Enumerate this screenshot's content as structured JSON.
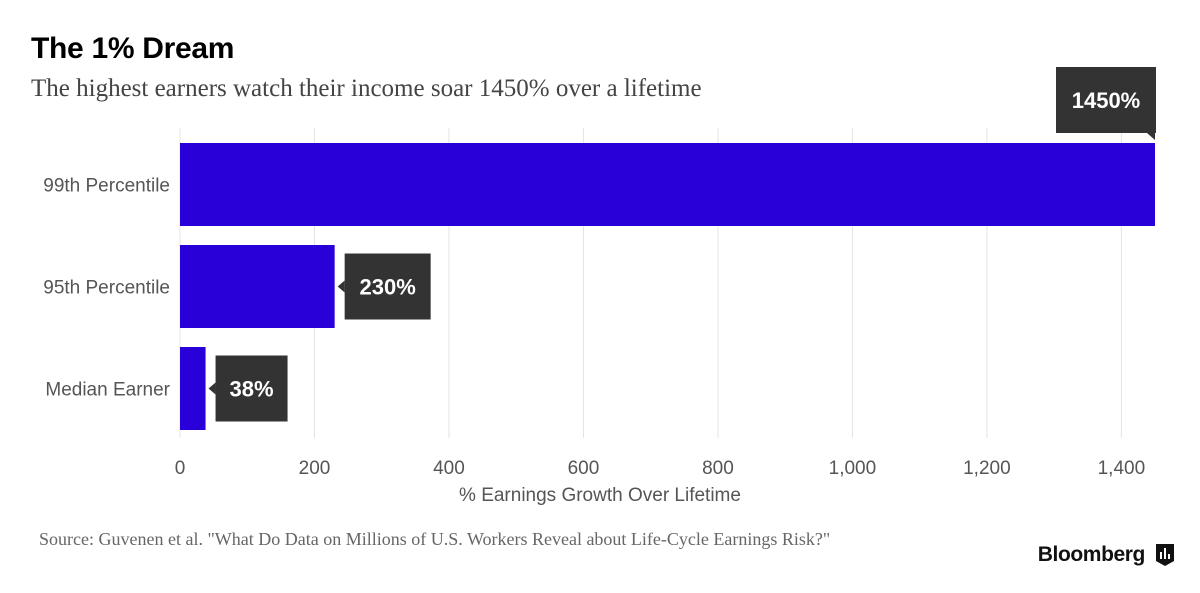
{
  "header": {
    "title": "The 1% Dream",
    "subtitle": "The highest earners watch their income soar 1450% over a lifetime"
  },
  "footer": {
    "source": "Source: Guvenen et al. \"What Do Data on Millions of U.S. Workers Reveal about Life-Cycle Earnings Risk?\"",
    "brand": "Bloomberg",
    "brand_icon": "bar-chart-icon"
  },
  "colors": {
    "bar": "#2A00D9",
    "label_box": "#333333",
    "grid": "#e4e4e4"
  },
  "chart_data": {
    "type": "bar",
    "orientation": "horizontal",
    "categories": [
      "99th Percentile",
      "95th Percentile",
      "Median Earner"
    ],
    "values": [
      1450,
      230,
      38
    ],
    "data_labels": [
      "1450%",
      "230%",
      "38%"
    ],
    "xlabel": "% Earnings Growth Over Lifetime",
    "ylabel": "",
    "xlim": [
      0,
      1450
    ],
    "x_ticks": [
      0,
      200,
      400,
      600,
      800,
      1000,
      1200,
      1400
    ],
    "x_tick_labels": [
      "0",
      "200",
      "400",
      "600",
      "800",
      "1,000",
      "1,200",
      "1,400"
    ],
    "grid": true,
    "legend": "none"
  }
}
